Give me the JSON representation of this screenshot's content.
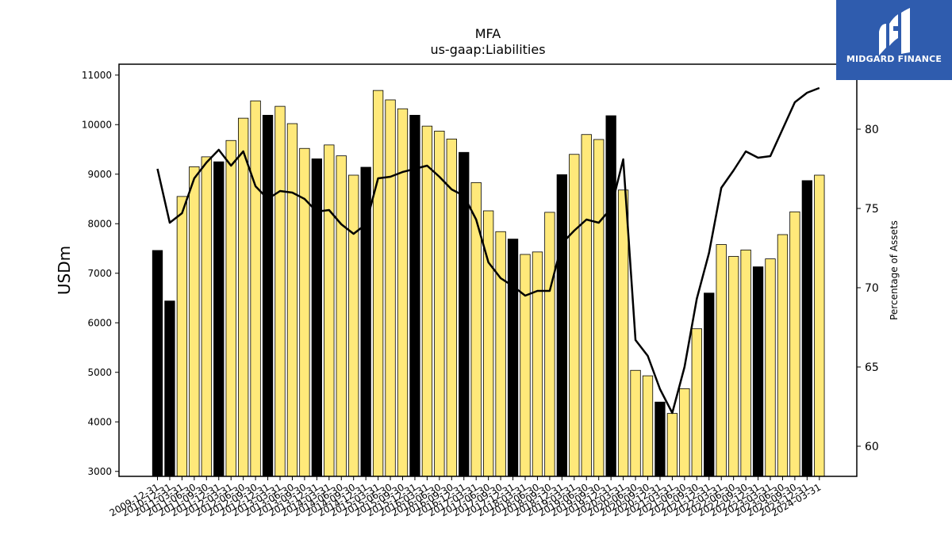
{
  "brand": {
    "name": "MIDGARD FINANCE",
    "color": "#2f5cae",
    "logo_icon": "midgard-logo-icon"
  },
  "chart_data": {
    "type": "bar",
    "title": "MFA",
    "subtitle": "us-gaap:Liabilities",
    "ylabel": "USDm",
    "y2label": "Percentage of Assets",
    "ylim": [
      2900,
      11220
    ],
    "y2lim": [
      58.1,
      84.1
    ],
    "yticks": [
      3000,
      4000,
      5000,
      6000,
      7000,
      8000,
      9000,
      10000,
      11000
    ],
    "y2ticks": [
      60,
      65,
      70,
      75,
      80
    ],
    "grid": false,
    "legend": "none",
    "colors": {
      "q4_bar": "#000000",
      "other_bar": "#ffe97a",
      "edge": "#000000",
      "line": "#000000"
    },
    "categories": [
      "2009-12-31",
      "2010-12-31",
      "2011-03-31",
      "2011-06-30",
      "2011-09-30",
      "2011-12-31",
      "2012-03-31",
      "2012-06-30",
      "2012-09-30",
      "2012-12-31",
      "2013-03-31",
      "2013-06-30",
      "2013-09-30",
      "2013-12-31",
      "2014-03-31",
      "2014-06-30",
      "2014-09-30",
      "2014-12-31",
      "2015-03-31",
      "2015-06-30",
      "2015-09-30",
      "2015-12-31",
      "2016-03-31",
      "2016-06-30",
      "2016-09-30",
      "2016-12-31",
      "2017-03-31",
      "2017-06-30",
      "2017-09-30",
      "2017-12-31",
      "2018-03-31",
      "2018-06-30",
      "2018-09-30",
      "2018-12-31",
      "2019-03-31",
      "2019-06-30",
      "2019-09-30",
      "2019-12-31",
      "2020-03-31",
      "2020-06-30",
      "2020-09-30",
      "2020-12-31",
      "2021-03-31",
      "2021-06-30",
      "2021-09-30",
      "2021-12-31",
      "2022-03-31",
      "2022-06-30",
      "2022-09-30",
      "2022-12-31",
      "2023-03-31",
      "2023-06-30",
      "2023-09-30",
      "2023-12-31",
      "2024-03-31"
    ],
    "series": [
      {
        "kind": "bar",
        "axis": "left",
        "values": [
          7460,
          6440,
          8550,
          9150,
          9350,
          9250,
          9680,
          10130,
          10480,
          10190,
          10370,
          10020,
          9520,
          9310,
          9590,
          9370,
          8980,
          9140,
          10690,
          10500,
          10320,
          10190,
          9970,
          9870,
          9710,
          9440,
          8830,
          8260,
          7840,
          7690,
          7380,
          7430,
          8230,
          8990,
          9400,
          9800,
          9700,
          10180,
          8680,
          5040,
          4930,
          4400,
          4170,
          4670,
          5880,
          6600,
          7580,
          7340,
          7470,
          7130,
          7290,
          7780,
          8240,
          8870,
          8980
        ]
      },
      {
        "kind": "line",
        "axis": "right",
        "values": [
          77.5,
          74.1,
          74.7,
          76.9,
          77.9,
          78.7,
          77.7,
          78.6,
          76.4,
          75.6,
          76.1,
          76.0,
          75.6,
          74.8,
          74.9,
          74.0,
          73.4,
          74.0,
          76.9,
          77.0,
          77.3,
          77.5,
          77.7,
          77.0,
          76.2,
          75.8,
          74.3,
          71.6,
          70.6,
          70.1,
          69.5,
          69.8,
          69.8,
          72.8,
          73.6,
          74.3,
          74.1,
          75.0,
          78.1,
          66.7,
          65.7,
          63.6,
          62.1,
          65.0,
          69.3,
          72.2,
          76.3,
          77.4,
          78.6,
          78.2,
          78.3,
          80.0,
          81.7,
          82.3,
          82.6
        ]
      }
    ]
  }
}
